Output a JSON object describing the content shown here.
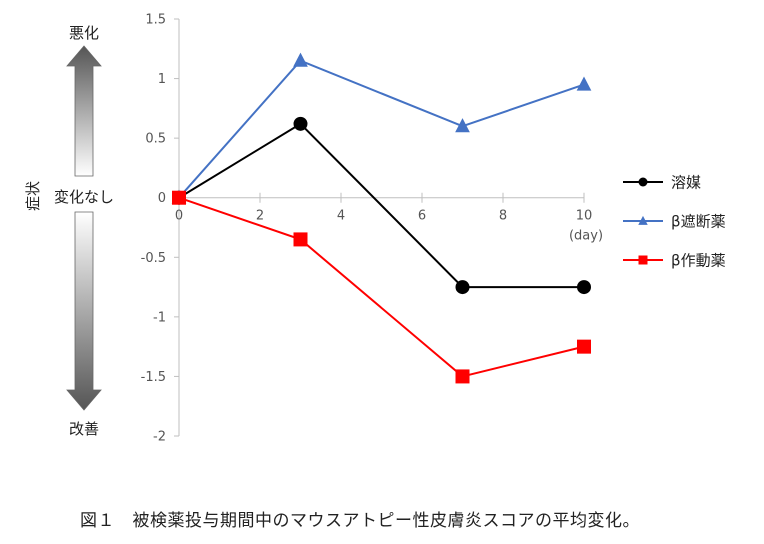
{
  "caption": "図１　被検薬投与期間中のマウスアトピー性皮膚炎スコアの平均変化。",
  "side_labels": {
    "top": "悪化",
    "middle": "変化なし",
    "bottom": "改善",
    "symptom": "症状"
  },
  "chart_data": {
    "type": "line",
    "xlabel": "(day)",
    "ylabel": "症状",
    "xlim": [
      0,
      10
    ],
    "ylim": [
      -2,
      1.5
    ],
    "x_ticks": [
      0,
      2,
      4,
      6,
      8,
      10
    ],
    "y_ticks": [
      1.5,
      1,
      0.5,
      0,
      -0.5,
      -1,
      -1.5,
      -2
    ],
    "y_tick_labels": [
      "1.5",
      "1",
      "0.5",
      "0",
      "-0.5",
      "-1",
      "-1.5",
      "-2"
    ],
    "grid": false,
    "legend_position": "right",
    "series": [
      {
        "name": "溶媒",
        "color": "#000000",
        "marker": "circle",
        "x": [
          0,
          3,
          7,
          10
        ],
        "y": [
          0,
          0.62,
          -0.75,
          -0.75
        ]
      },
      {
        "name": "β遮断薬",
        "color": "#4472c4",
        "marker": "triangle",
        "x": [
          0,
          3,
          7,
          10
        ],
        "y": [
          0,
          1.15,
          0.6,
          0.95
        ]
      },
      {
        "name": "β作動薬",
        "color": "#ff0000",
        "marker": "square",
        "x": [
          0,
          3,
          7,
          10
        ],
        "y": [
          0,
          -0.35,
          -1.5,
          -1.25
        ]
      }
    ]
  }
}
